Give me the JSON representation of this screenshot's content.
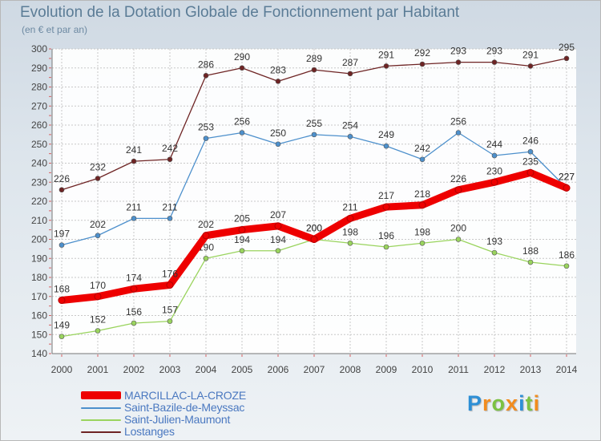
{
  "chart_data": {
    "type": "line",
    "title": "Evolution de la Dotation Globale de Fonctionnement par Habitant",
    "subtitle": "(en € et par an)",
    "xlabel": "",
    "ylabel": "",
    "categories": [
      "2000",
      "2001",
      "2002",
      "2003",
      "2004",
      "2005",
      "2006",
      "2007",
      "2008",
      "2009",
      "2010",
      "2011",
      "2012",
      "2013",
      "2014"
    ],
    "ylim": [
      140,
      300
    ],
    "yticks": [
      140,
      150,
      160,
      170,
      180,
      190,
      200,
      210,
      220,
      230,
      240,
      250,
      260,
      270,
      280,
      290,
      300
    ],
    "grid": true,
    "legend_position": "bottom-left",
    "series": [
      {
        "name": "Lostanges",
        "color": "#6e2424",
        "values": [
          226,
          232,
          241,
          242,
          286,
          290,
          283,
          289,
          287,
          291,
          292,
          293,
          293,
          291,
          295
        ]
      },
      {
        "name": "Saint-Bazile-de-Meyssac",
        "color": "#4d90cc",
        "values": [
          197,
          202,
          211,
          211,
          253,
          256,
          250,
          255,
          254,
          249,
          242,
          256,
          244,
          246,
          227
        ]
      },
      {
        "name": "Saint-Julien-Maumont",
        "color": "#9ad45e",
        "values": [
          149,
          152,
          156,
          157,
          190,
          194,
          194,
          200,
          198,
          196,
          198,
          200,
          193,
          188,
          186
        ]
      },
      {
        "name": "MARCILLAC-LA-CROZE",
        "color": "#ee0000",
        "values": [
          168,
          170,
          174,
          176,
          202,
          205,
          207,
          200,
          211,
          217,
          218,
          226,
          230,
          235,
          227
        ]
      }
    ],
    "legend_order": [
      "MARCILLAC-LA-CROZE",
      "Saint-Bazile-de-Meyssac",
      "Saint-Julien-Maumont",
      "Lostanges"
    ]
  },
  "logo": {
    "letters": [
      "P",
      "r",
      "o",
      "x",
      "i",
      "t",
      "i"
    ],
    "colors": [
      "#2d8fd6",
      "#f28c1e",
      "#7cc242",
      "#f28c1e",
      "#2d8fd6",
      "#7cc242",
      "#f28c1e"
    ]
  }
}
